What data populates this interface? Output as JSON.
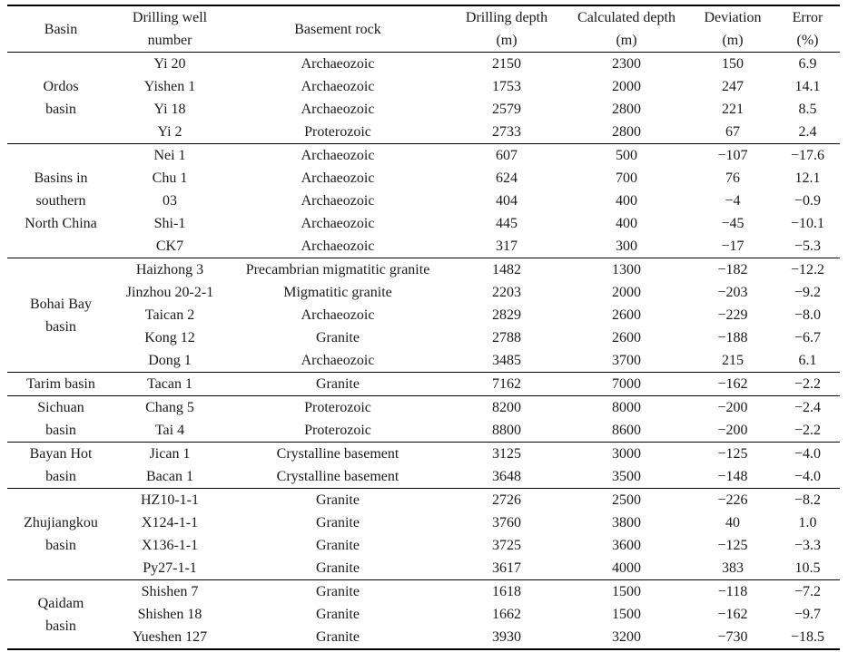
{
  "table": {
    "headers": [
      {
        "line1": "Basin",
        "line2": ""
      },
      {
        "line1": "Drilling well",
        "line2": "number"
      },
      {
        "line1": "Basement rock",
        "line2": ""
      },
      {
        "line1": "Drilling depth",
        "line2": "(m)"
      },
      {
        "line1": "Calculated depth",
        "line2": "(m)"
      },
      {
        "line1": "Deviation",
        "line2": "(m)"
      },
      {
        "line1": "Error",
        "line2": "(%)"
      }
    ],
    "column_names": [
      "well-number",
      "basement-rock",
      "drilling-depth",
      "calculated-depth",
      "deviation",
      "error"
    ],
    "groups": [
      {
        "basin": "Ordos basin",
        "basin_lines": [
          "Ordos",
          "basin"
        ],
        "rows": [
          [
            "Yi 20",
            "Archaeozoic",
            "2150",
            "2300",
            "150",
            "6.9"
          ],
          [
            "Yishen 1",
            "Archaeozoic",
            "1753",
            "2000",
            "247",
            "14.1"
          ],
          [
            "Yi 18",
            "Archaeozoic",
            "2579",
            "2800",
            "221",
            "8.5"
          ],
          [
            "Yi 2",
            "Proterozoic",
            "2733",
            "2800",
            "67",
            "2.4"
          ]
        ]
      },
      {
        "basin": "Basins in southern North China",
        "basin_lines": [
          "Basins in",
          "southern",
          "North China"
        ],
        "rows": [
          [
            "Nei 1",
            "Archaeozoic",
            "607",
            "500",
            "−107",
            "−17.6"
          ],
          [
            "Chu 1",
            "Archaeozoic",
            "624",
            "700",
            "76",
            "12.1"
          ],
          [
            "03",
            "Archaeozoic",
            "404",
            "400",
            "−4",
            "−0.9"
          ],
          [
            "Shi-1",
            "Archaeozoic",
            "445",
            "400",
            "−45",
            "−10.1"
          ],
          [
            "CK7",
            "Archaeozoic",
            "317",
            "300",
            "−17",
            "−5.3"
          ]
        ]
      },
      {
        "basin": "Bohai Bay basin",
        "basin_lines": [
          "Bohai Bay",
          "basin"
        ],
        "rows": [
          [
            "Haizhong 3",
            "Precambrian migmatitic granite",
            "1482",
            "1300",
            "−182",
            "−12.2"
          ],
          [
            "Jinzhou 20-2-1",
            "Migmatitic granite",
            "2203",
            "2000",
            "−203",
            "−9.2"
          ],
          [
            "Taican 2",
            "Archaeozoic",
            "2829",
            "2600",
            "−229",
            "−8.0"
          ],
          [
            "Kong 12",
            "Granite",
            "2788",
            "2600",
            "−188",
            "−6.7"
          ],
          [
            "Dong 1",
            "Archaeozoic",
            "3485",
            "3700",
            "215",
            "6.1"
          ]
        ]
      },
      {
        "basin": "Tarim basin",
        "basin_lines": [
          "Tarim basin"
        ],
        "rows": [
          [
            "Tacan 1",
            "Granite",
            "7162",
            "7000",
            "−162",
            "−2.2"
          ]
        ]
      },
      {
        "basin": "Sichuan basin",
        "basin_lines": [
          "Sichuan",
          "basin"
        ],
        "rows": [
          [
            "Chang 5",
            "Proterozoic",
            "8200",
            "8000",
            "−200",
            "−2.4"
          ],
          [
            "Tai 4",
            "Proterozoic",
            "8800",
            "8600",
            "−200",
            "−2.2"
          ]
        ]
      },
      {
        "basin": "Bayan Hot basin",
        "basin_lines": [
          "Bayan Hot",
          "basin"
        ],
        "rows": [
          [
            "Jican 1",
            "Crystalline basement",
            "3125",
            "3000",
            "−125",
            "−4.0"
          ],
          [
            "Bacan 1",
            "Crystalline basement",
            "3648",
            "3500",
            "−148",
            "−4.0"
          ]
        ]
      },
      {
        "basin": "Zhujiangkou basin",
        "basin_lines": [
          "Zhujiangkou",
          "basin"
        ],
        "rows": [
          [
            "HZ10-1-1",
            "Granite",
            "2726",
            "2500",
            "−226",
            "−8.2"
          ],
          [
            "X124-1-1",
            "Granite",
            "3760",
            "3800",
            "40",
            "1.0"
          ],
          [
            "X136-1-1",
            "Granite",
            "3725",
            "3600",
            "−125",
            "−3.3"
          ],
          [
            "Py27-1-1",
            "Granite",
            "3617",
            "4000",
            "383",
            "10.5"
          ]
        ]
      },
      {
        "basin": "Qaidam basin",
        "basin_lines": [
          "Qaidam",
          "basin"
        ],
        "rows": [
          [
            "Shishen 7",
            "Granite",
            "1618",
            "1500",
            "−118",
            "−7.2"
          ],
          [
            "Shishen 18",
            "Granite",
            "1662",
            "1500",
            "−162",
            "−9.7"
          ],
          [
            "Yueshen 127",
            "Granite",
            "3930",
            "3200",
            "−730",
            "−18.5"
          ]
        ]
      }
    ]
  }
}
